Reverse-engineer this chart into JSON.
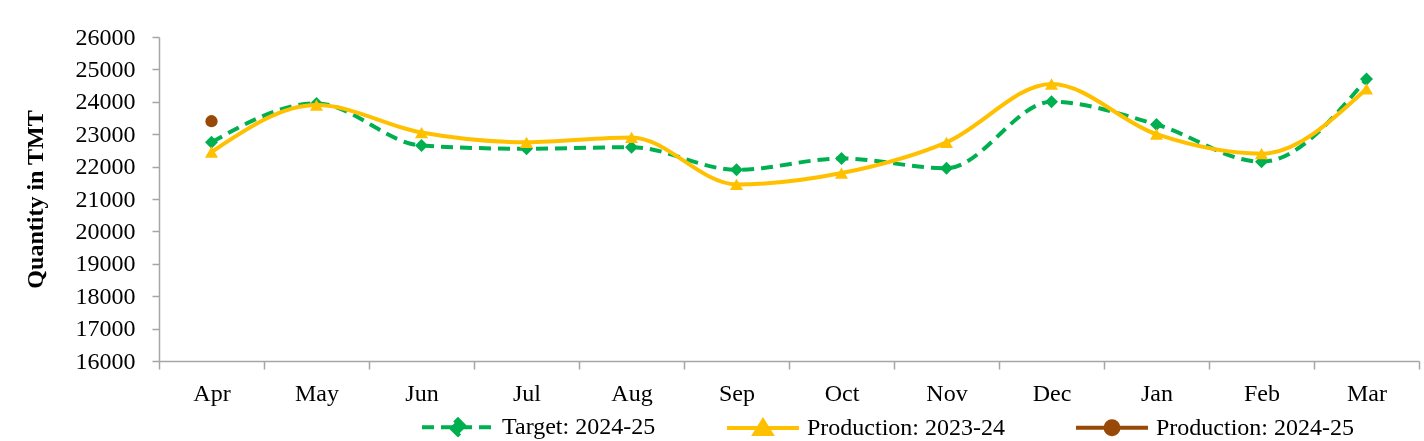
{
  "chart_data": {
    "type": "line",
    "ylabel": "Quantity in TMT",
    "categories": [
      "Apr",
      "May",
      "Jun",
      "Jul",
      "Aug",
      "Sep",
      "Oct",
      "Nov",
      "Dec",
      "Jan",
      "Feb",
      "Mar"
    ],
    "ylim": [
      16000,
      26000
    ],
    "yticks": [
      16000,
      17000,
      18000,
      19000,
      20000,
      21000,
      22000,
      23000,
      24000,
      25000,
      26000
    ],
    "legend": "bottom",
    "series": [
      {
        "name": "Target: 2024-25",
        "color": "#00b050",
        "marker": "diamond",
        "line_style": "dashed",
        "values": [
          22750,
          23950,
          22650,
          22550,
          22600,
          21900,
          22250,
          21950,
          24000,
          23300,
          22150,
          24700
        ]
      },
      {
        "name": "Production: 2023-24",
        "color": "#ffc000",
        "marker": "triangle",
        "line_style": "solid",
        "values": [
          22450,
          23900,
          23050,
          22750,
          22900,
          21450,
          21800,
          22750,
          24550,
          23000,
          22400,
          24400
        ]
      },
      {
        "name": "Production: 2024-25",
        "color": "#984807",
        "marker": "circle",
        "line_style": "solid",
        "values": [
          23400,
          null,
          null,
          null,
          null,
          null,
          null,
          null,
          null,
          null,
          null,
          null
        ]
      }
    ]
  }
}
